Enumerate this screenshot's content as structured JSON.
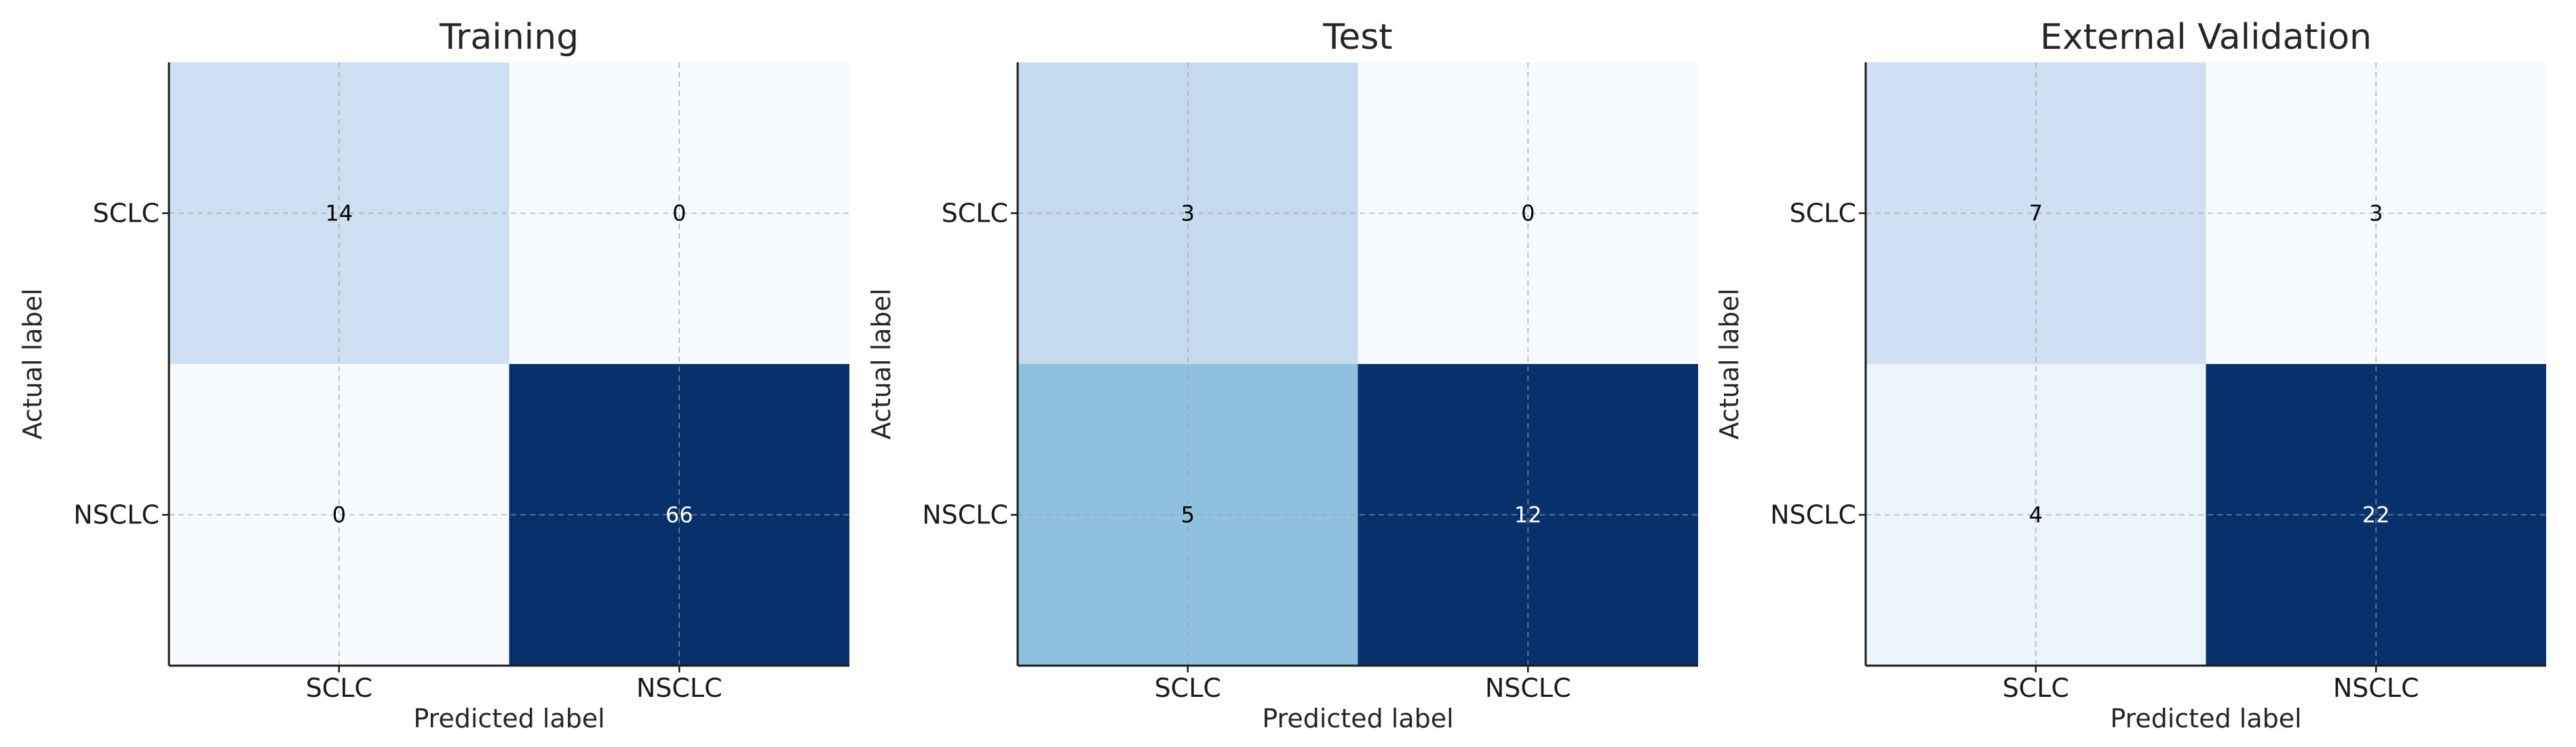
{
  "chart_data": [
    {
      "type": "heatmap",
      "title": "Training",
      "xlabel": "Predicted label",
      "ylabel": "Actual label",
      "x_categories": [
        "SCLC",
        "NSCLC"
      ],
      "y_categories": [
        "SCLC",
        "NSCLC"
      ],
      "values": [
        [
          14,
          0
        ],
        [
          0,
          66
        ]
      ],
      "colormap": "Blues",
      "grid": true
    },
    {
      "type": "heatmap",
      "title": "Test",
      "xlabel": "Predicted label",
      "ylabel": "Actual label",
      "x_categories": [
        "SCLC",
        "NSCLC"
      ],
      "y_categories": [
        "SCLC",
        "NSCLC"
      ],
      "values": [
        [
          3,
          0
        ],
        [
          5,
          12
        ]
      ],
      "colormap": "Blues",
      "grid": true
    },
    {
      "type": "heatmap",
      "title": "External Validation",
      "xlabel": "Predicted label",
      "ylabel": "Actual label",
      "x_categories": [
        "SCLC",
        "NSCLC"
      ],
      "y_categories": [
        "SCLC",
        "NSCLC"
      ],
      "values": [
        [
          7,
          3
        ],
        [
          4,
          22
        ]
      ],
      "colormap": "Blues",
      "grid": true
    }
  ]
}
